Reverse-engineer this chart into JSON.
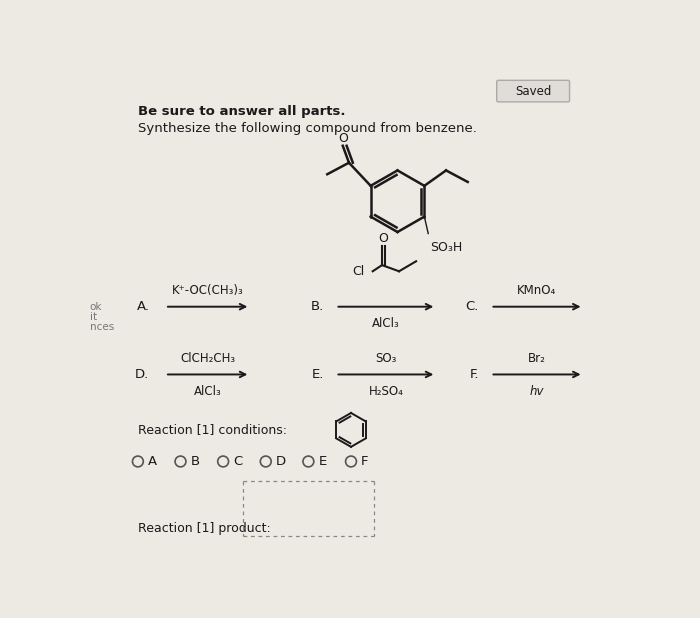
{
  "title_line1": "Be sure to answer all parts.",
  "title_line2": "Synthesize the following compound from benzene.",
  "saved_label": "Saved",
  "background_color": "#ede9e3",
  "text_color": "#1a1a1a",
  "reaction_conditions_label": "Reaction [1] conditions:",
  "reaction_product_label": "Reaction [1] product:"
}
